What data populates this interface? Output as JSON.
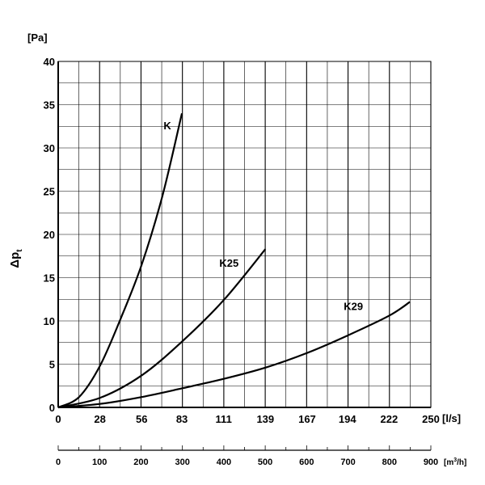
{
  "chart_data": {
    "type": "line",
    "ylabel": "Δp",
    "ylabel_sub": "t",
    "y_unit": "[Pa]",
    "x_unit": "[l/s]",
    "x2_unit_prefix": "[m",
    "x2_unit_sup": "3",
    "x2_unit_suffix": "/h]",
    "xlim": [
      0,
      250
    ],
    "ylim": [
      0,
      40
    ],
    "x2lim": [
      0,
      900
    ],
    "y_ticks": [
      0,
      5,
      10,
      15,
      20,
      25,
      30,
      35,
      40
    ],
    "x_ticks": [
      0,
      28,
      56,
      83,
      111,
      139,
      167,
      194,
      222,
      250
    ],
    "x2_ticks": [
      0,
      100,
      200,
      300,
      400,
      500,
      600,
      700,
      800,
      900
    ],
    "grid": true,
    "series": [
      {
        "name": "K",
        "x": [
          0,
          14,
          28,
          42,
          56,
          70,
          83
        ],
        "y": [
          0,
          1.2,
          4.8,
          10.3,
          16.5,
          24.5,
          34
        ]
      },
      {
        "name": "K25",
        "x": [
          0,
          28,
          56,
          83,
          111,
          139
        ],
        "y": [
          0,
          1.1,
          3.7,
          7.6,
          12.4,
          18.3
        ]
      },
      {
        "name": "K29",
        "x": [
          0,
          28,
          56,
          83,
          111,
          139,
          167,
          194,
          222,
          236
        ],
        "y": [
          0,
          0.4,
          1.2,
          2.2,
          3.3,
          4.6,
          6.3,
          8.3,
          10.6,
          12.2
        ]
      }
    ]
  }
}
